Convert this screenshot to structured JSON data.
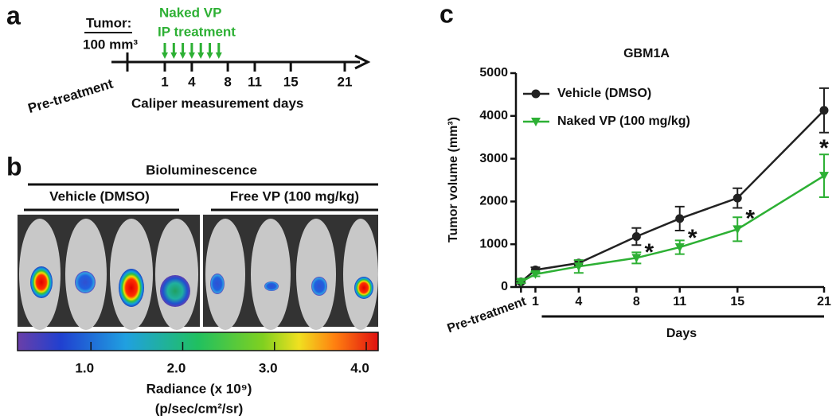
{
  "panel_labels": [
    "a",
    "b",
    "c"
  ],
  "timeline": {
    "tumor_label": "Tumor:",
    "tumor_size": "100 mm³",
    "treatment": [
      "Naked VP",
      "IP treatment"
    ],
    "start_label": "Pre-treatment",
    "days": [
      1,
      4,
      8,
      11,
      15,
      21
    ],
    "axis_label": "Caliper measurement days"
  },
  "imaging": {
    "title": "Bioluminescence",
    "groups": [
      "Vehicle (DMSO)",
      "Free VP (100 mg/kg)"
    ],
    "colorbar": {
      "lim": [
        0.2,
        4.13
      ],
      "ticks": [
        {
          "value": 1,
          "label": "1.0"
        },
        {
          "value": 2,
          "label": "2.0"
        },
        {
          "value": 3,
          "label": "3.0"
        },
        {
          "value": 4,
          "label": "4.0"
        }
      ],
      "label": "Radiance (x 10⁹)",
      "unit": "(p/sec/cm²/sr)"
    }
  },
  "chart_data": {
    "type": "line",
    "title": "GBM1A",
    "x": [
      0,
      1,
      4,
      8,
      11,
      15,
      21
    ],
    "xticks": [
      {
        "value": 0,
        "label": "Pre-treatment"
      },
      1,
      4,
      8,
      11,
      15,
      21
    ],
    "xlim": [
      -0.35,
      21
    ],
    "ylim": [
      0,
      5000
    ],
    "yticks": [
      0,
      1000,
      2000,
      3000,
      4000,
      5000
    ],
    "xlabel": "Days",
    "ylabel": "Tumor volume (mm³)",
    "legend": "upper left",
    "series": [
      {
        "name": "Vehicle (DMSO)",
        "color": "#222222",
        "marker": "circle",
        "values": [
          120,
          400,
          560,
          1180,
          1600,
          2080,
          4130
        ],
        "errors": [
          30,
          60,
          60,
          200,
          280,
          230,
          520
        ]
      },
      {
        "name": "Naked VP (100 mg/kg)",
        "color": "#2db034",
        "marker": "triangle-down",
        "values": [
          120,
          300,
          480,
          680,
          930,
          1350,
          2600
        ],
        "errors": [
          30,
          50,
          150,
          130,
          160,
          280,
          500
        ]
      }
    ],
    "annotations": [
      {
        "x": 8,
        "text": "*"
      },
      {
        "x": 11,
        "text": "*"
      },
      {
        "x": 15,
        "text": "*"
      },
      {
        "x": 21,
        "text": "*"
      }
    ]
  }
}
